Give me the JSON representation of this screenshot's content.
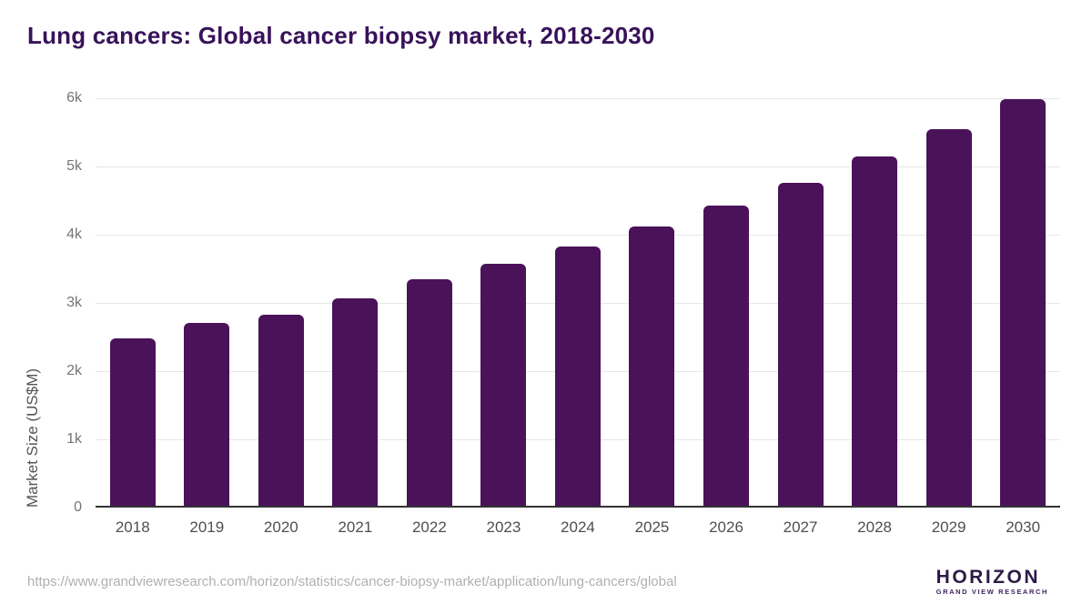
{
  "header": {
    "title": "Lung cancers: Global cancer biopsy market, 2018-2030"
  },
  "chart_data": {
    "type": "bar",
    "title": "Lung cancers: Global cancer biopsy market, 2018-2030",
    "categories": [
      "2018",
      "2019",
      "2020",
      "2021",
      "2022",
      "2023",
      "2024",
      "2025",
      "2026",
      "2027",
      "2028",
      "2029",
      "2030"
    ],
    "values": [
      2455,
      2675,
      2795,
      3035,
      3315,
      3550,
      3805,
      4090,
      4395,
      4740,
      5115,
      5515,
      5960
    ],
    "xlabel": "",
    "ylabel": "Market Size (US$M)",
    "ylim": [
      0,
      6000
    ],
    "yticks": [
      {
        "value": 0,
        "label": "0"
      },
      {
        "value": 1000,
        "label": "1k"
      },
      {
        "value": 2000,
        "label": "2k"
      },
      {
        "value": 3000,
        "label": "3k"
      },
      {
        "value": 4000,
        "label": "4k"
      },
      {
        "value": 5000,
        "label": "5k"
      },
      {
        "value": 6000,
        "label": "6k"
      }
    ],
    "grid": true,
    "legend": false,
    "bar_color": "#4a1259"
  },
  "footer": {
    "source_url": "https://www.grandviewresearch.com/horizon/statistics/cancer-biopsy-market/application/lung-cancers/global",
    "logo": {
      "name": "HORIZON",
      "subtitle": "GRAND VIEW RESEARCH",
      "icon": "horizon-sun-icon",
      "color_dark": "#2e1a47",
      "color_light": "#56c5ea"
    }
  },
  "colors": {
    "title": "#38125a",
    "bar": "#4a1259",
    "gridline": "#e7e7e7",
    "axis_line": "#333333",
    "y_tick_text": "#757575",
    "x_tick_text": "#4f4f4f",
    "url_text": "#b0b0b0"
  }
}
